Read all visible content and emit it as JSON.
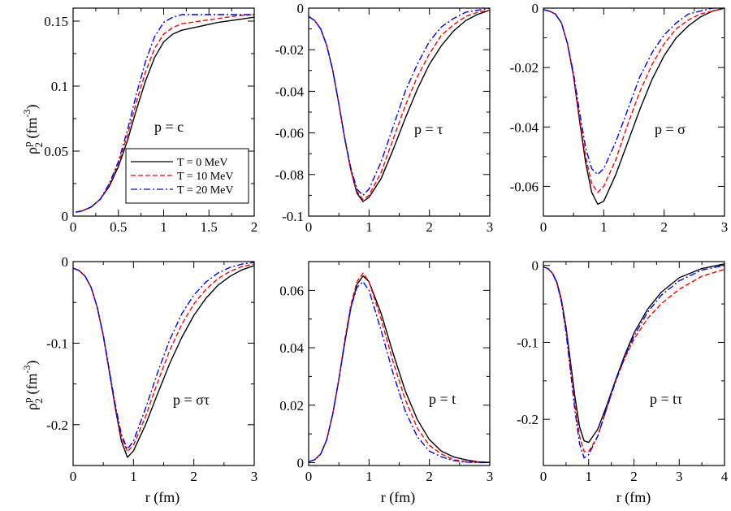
{
  "figure": {
    "ylabel_rho": "ρ",
    "ylabel_sup": "p",
    "ylabel_sub": "2",
    "ylabel_unit": " (fm",
    "ylabel_exp": "-3",
    "ylabel_close": ")",
    "xlabel": "r (fm)"
  },
  "legend": {
    "entries": [
      {
        "label": "T = 0 MeV",
        "color": "#000000",
        "dash": "solid"
      },
      {
        "label": "T = 10 MeV",
        "color": "#ff0000",
        "dash": "dashed"
      },
      {
        "label": "T = 20 MeV",
        "color": "#0000ff",
        "dash": "dashdot"
      }
    ]
  },
  "chart_data": [
    {
      "type": "line",
      "annotation": "p = c",
      "xlim": [
        0,
        2
      ],
      "ylim": [
        0,
        0.16
      ],
      "xticks": [
        0,
        0.5,
        1,
        1.5,
        2
      ],
      "xtick_labels": [
        "0",
        "0.5",
        "1",
        "1.5",
        "2"
      ],
      "yticks": [
        0,
        0.05,
        0.1,
        0.15
      ],
      "ytick_labels": [
        "0",
        "0.05",
        "0.1",
        "0.15"
      ],
      "series": [
        {
          "name": "T = 0 MeV",
          "x": [
            0.03,
            0.1,
            0.2,
            0.3,
            0.4,
            0.5,
            0.6,
            0.7,
            0.8,
            0.9,
            1.0,
            1.1,
            1.2,
            1.4,
            1.6,
            1.8,
            2.0
          ],
          "y": [
            0.003,
            0.004,
            0.007,
            0.013,
            0.023,
            0.038,
            0.058,
            0.082,
            0.104,
            0.122,
            0.134,
            0.14,
            0.143,
            0.146,
            0.149,
            0.151,
            0.153
          ]
        },
        {
          "name": "T = 10 MeV",
          "x": [
            0.03,
            0.1,
            0.2,
            0.3,
            0.4,
            0.5,
            0.6,
            0.7,
            0.8,
            0.9,
            1.0,
            1.1,
            1.2,
            1.4,
            1.6,
            1.8,
            2.0
          ],
          "y": [
            0.003,
            0.004,
            0.007,
            0.013,
            0.024,
            0.04,
            0.062,
            0.088,
            0.111,
            0.129,
            0.14,
            0.145,
            0.148,
            0.15,
            0.152,
            0.154,
            0.155
          ]
        },
        {
          "name": "T = 20 MeV",
          "x": [
            0.03,
            0.1,
            0.2,
            0.3,
            0.4,
            0.5,
            0.6,
            0.7,
            0.8,
            0.9,
            1.0,
            1.1,
            1.2,
            1.4,
            1.6,
            1.8,
            2.0
          ],
          "y": [
            0.003,
            0.004,
            0.007,
            0.013,
            0.025,
            0.042,
            0.066,
            0.094,
            0.119,
            0.138,
            0.149,
            0.153,
            0.155,
            0.155,
            0.155,
            0.155,
            0.155
          ]
        }
      ]
    },
    {
      "type": "line",
      "annotation": "p = τ",
      "xlim": [
        0,
        3
      ],
      "ylim": [
        -0.1,
        0
      ],
      "xticks": [
        0,
        1,
        2,
        3
      ],
      "xtick_labels": [
        "0",
        "1",
        "2",
        "3"
      ],
      "yticks": [
        -0.1,
        -0.08,
        -0.06,
        -0.04,
        -0.02,
        0
      ],
      "ytick_labels": [
        "-0.1",
        "-0.08",
        "-0.06",
        "-0.04",
        "-0.02",
        "0"
      ],
      "series": [
        {
          "name": "T = 0 MeV",
          "x": [
            0,
            0.1,
            0.2,
            0.3,
            0.4,
            0.5,
            0.6,
            0.7,
            0.8,
            0.9,
            1.0,
            1.2,
            1.4,
            1.6,
            1.8,
            2.0,
            2.2,
            2.4,
            2.6,
            2.8,
            3.0
          ],
          "y": [
            -0.004,
            -0.006,
            -0.01,
            -0.018,
            -0.03,
            -0.046,
            -0.063,
            -0.078,
            -0.089,
            -0.093,
            -0.091,
            -0.082,
            -0.068,
            -0.053,
            -0.039,
            -0.027,
            -0.018,
            -0.011,
            -0.006,
            -0.003,
            -0.001
          ]
        },
        {
          "name": "T = 10 MeV",
          "x": [
            0,
            0.1,
            0.2,
            0.3,
            0.4,
            0.5,
            0.6,
            0.7,
            0.8,
            0.9,
            1.0,
            1.2,
            1.4,
            1.6,
            1.8,
            2.0,
            2.2,
            2.4,
            2.6,
            2.8,
            3.0
          ],
          "y": [
            -0.004,
            -0.006,
            -0.01,
            -0.018,
            -0.03,
            -0.046,
            -0.063,
            -0.078,
            -0.088,
            -0.092,
            -0.09,
            -0.079,
            -0.063,
            -0.047,
            -0.033,
            -0.022,
            -0.013,
            -0.008,
            -0.004,
            -0.002,
            -0.001
          ]
        },
        {
          "name": "T = 20 MeV",
          "x": [
            0,
            0.1,
            0.2,
            0.3,
            0.4,
            0.5,
            0.6,
            0.7,
            0.8,
            0.9,
            1.0,
            1.2,
            1.4,
            1.6,
            1.8,
            2.0,
            2.2,
            2.4,
            2.6,
            2.8,
            3.0
          ],
          "y": [
            -0.004,
            -0.006,
            -0.01,
            -0.018,
            -0.03,
            -0.046,
            -0.063,
            -0.077,
            -0.087,
            -0.09,
            -0.087,
            -0.074,
            -0.057,
            -0.04,
            -0.027,
            -0.016,
            -0.009,
            -0.005,
            -0.002,
            -0.001,
            0.0
          ]
        }
      ]
    },
    {
      "type": "line",
      "annotation": "p = σ",
      "xlim": [
        0,
        3
      ],
      "ylim": [
        -0.07,
        0
      ],
      "xticks": [
        0,
        1,
        2,
        3
      ],
      "xtick_labels": [
        "0",
        "1",
        "2",
        "3"
      ],
      "yticks": [
        -0.06,
        -0.04,
        -0.02,
        0
      ],
      "ytick_labels": [
        "-0.06",
        "-0.04",
        "-0.02",
        "0"
      ],
      "series": [
        {
          "name": "T = 0 MeV",
          "x": [
            0,
            0.1,
            0.2,
            0.3,
            0.4,
            0.5,
            0.6,
            0.7,
            0.8,
            0.9,
            1.0,
            1.2,
            1.4,
            1.6,
            1.8,
            2.0,
            2.2,
            2.4,
            2.6,
            2.8,
            3.0
          ],
          "y": [
            -0.0005,
            -0.001,
            -0.002,
            -0.005,
            -0.012,
            -0.023,
            -0.038,
            -0.052,
            -0.062,
            -0.066,
            -0.065,
            -0.056,
            -0.045,
            -0.034,
            -0.024,
            -0.016,
            -0.01,
            -0.006,
            -0.003,
            -0.001,
            0.0
          ]
        },
        {
          "name": "T = 10 MeV",
          "x": [
            0,
            0.1,
            0.2,
            0.3,
            0.4,
            0.5,
            0.6,
            0.7,
            0.8,
            0.9,
            1.0,
            1.2,
            1.4,
            1.6,
            1.8,
            2.0,
            2.2,
            2.4,
            2.6,
            2.8,
            3.0
          ],
          "y": [
            -0.0005,
            -0.001,
            -0.002,
            -0.005,
            -0.012,
            -0.023,
            -0.037,
            -0.05,
            -0.059,
            -0.062,
            -0.06,
            -0.051,
            -0.039,
            -0.028,
            -0.019,
            -0.012,
            -0.007,
            -0.004,
            -0.002,
            -0.001,
            0.0
          ]
        },
        {
          "name": "T = 20 MeV",
          "x": [
            0,
            0.1,
            0.2,
            0.3,
            0.4,
            0.5,
            0.6,
            0.7,
            0.8,
            0.9,
            1.0,
            1.2,
            1.4,
            1.6,
            1.8,
            2.0,
            2.2,
            2.4,
            2.6,
            2.8,
            3.0
          ],
          "y": [
            -0.0005,
            -0.001,
            -0.002,
            -0.005,
            -0.012,
            -0.022,
            -0.035,
            -0.047,
            -0.054,
            -0.056,
            -0.054,
            -0.045,
            -0.034,
            -0.023,
            -0.015,
            -0.009,
            -0.005,
            -0.002,
            -0.001,
            0.0,
            0.0
          ]
        }
      ]
    },
    {
      "type": "line",
      "annotation": "p = στ",
      "xlim": [
        0,
        3
      ],
      "ylim": [
        -0.25,
        0
      ],
      "xticks": [
        0,
        1,
        2,
        3
      ],
      "xtick_labels": [
        "0",
        "1",
        "2",
        "3"
      ],
      "yticks": [
        -0.2,
        -0.1,
        0
      ],
      "ytick_labels": [
        "-0.2",
        "-0.1",
        "0"
      ],
      "series": [
        {
          "name": "T = 0 MeV",
          "x": [
            0,
            0.1,
            0.2,
            0.3,
            0.4,
            0.5,
            0.6,
            0.7,
            0.8,
            0.9,
            1.0,
            1.2,
            1.4,
            1.6,
            1.8,
            2.0,
            2.2,
            2.4,
            2.6,
            2.8,
            3.0
          ],
          "y": [
            -0.008,
            -0.011,
            -0.018,
            -0.032,
            -0.056,
            -0.091,
            -0.135,
            -0.18,
            -0.22,
            -0.24,
            -0.232,
            -0.2,
            -0.162,
            -0.125,
            -0.093,
            -0.066,
            -0.045,
            -0.029,
            -0.018,
            -0.01,
            -0.005
          ]
        },
        {
          "name": "T = 10 MeV",
          "x": [
            0,
            0.1,
            0.2,
            0.3,
            0.4,
            0.5,
            0.6,
            0.7,
            0.8,
            0.9,
            1.0,
            1.2,
            1.4,
            1.6,
            1.8,
            2.0,
            2.2,
            2.4,
            2.6,
            2.8,
            3.0
          ],
          "y": [
            -0.008,
            -0.011,
            -0.018,
            -0.032,
            -0.056,
            -0.091,
            -0.134,
            -0.178,
            -0.215,
            -0.233,
            -0.225,
            -0.19,
            -0.148,
            -0.109,
            -0.077,
            -0.052,
            -0.034,
            -0.021,
            -0.012,
            -0.006,
            -0.003
          ]
        },
        {
          "name": "T = 20 MeV",
          "x": [
            0,
            0.1,
            0.2,
            0.3,
            0.4,
            0.5,
            0.6,
            0.7,
            0.8,
            0.9,
            1.0,
            1.2,
            1.4,
            1.6,
            1.8,
            2.0,
            2.2,
            2.4,
            2.6,
            2.8,
            3.0
          ],
          "y": [
            -0.008,
            -0.011,
            -0.018,
            -0.032,
            -0.056,
            -0.09,
            -0.133,
            -0.176,
            -0.212,
            -0.23,
            -0.22,
            -0.18,
            -0.136,
            -0.096,
            -0.064,
            -0.041,
            -0.025,
            -0.014,
            -0.007,
            -0.003,
            -0.001
          ]
        }
      ]
    },
    {
      "type": "line",
      "annotation": "p = t",
      "xlim": [
        0,
        3
      ],
      "ylim": [
        -0.001,
        0.07
      ],
      "xticks": [
        0,
        1,
        2,
        3
      ],
      "xtick_labels": [
        "0",
        "1",
        "2",
        "3"
      ],
      "yticks": [
        0,
        0.02,
        0.04,
        0.06
      ],
      "ytick_labels": [
        "0",
        "0.02",
        "0.04",
        "0.06"
      ],
      "series": [
        {
          "name": "T = 0 MeV",
          "x": [
            0,
            0.1,
            0.2,
            0.3,
            0.4,
            0.5,
            0.6,
            0.7,
            0.8,
            0.9,
            1.0,
            1.2,
            1.4,
            1.6,
            1.8,
            2.0,
            2.2,
            2.4,
            2.6,
            2.8,
            3.0
          ],
          "y": [
            0.0003,
            0.001,
            0.003,
            0.008,
            0.017,
            0.029,
            0.042,
            0.054,
            0.062,
            0.065,
            0.063,
            0.052,
            0.038,
            0.025,
            0.015,
            0.008,
            0.004,
            0.002,
            0.001,
            0.0003,
            0.0001
          ]
        },
        {
          "name": "T = 10 MeV",
          "x": [
            0,
            0.1,
            0.2,
            0.3,
            0.4,
            0.5,
            0.6,
            0.7,
            0.8,
            0.9,
            1.0,
            1.2,
            1.4,
            1.6,
            1.8,
            2.0,
            2.2,
            2.4,
            2.6,
            2.8,
            3.0
          ],
          "y": [
            0.0003,
            0.001,
            0.003,
            0.008,
            0.017,
            0.029,
            0.043,
            0.055,
            0.063,
            0.066,
            0.063,
            0.05,
            0.035,
            0.022,
            0.012,
            0.006,
            0.003,
            0.001,
            0.0004,
            0.0001,
            0.0
          ]
        },
        {
          "name": "T = 20 MeV",
          "x": [
            0,
            0.1,
            0.2,
            0.3,
            0.4,
            0.5,
            0.6,
            0.7,
            0.8,
            0.9,
            1.0,
            1.2,
            1.4,
            1.6,
            1.8,
            2.0,
            2.2,
            2.4,
            2.6,
            2.8,
            3.0
          ],
          "y": [
            0.0003,
            0.001,
            0.003,
            0.008,
            0.017,
            0.029,
            0.042,
            0.054,
            0.061,
            0.063,
            0.06,
            0.046,
            0.031,
            0.018,
            0.009,
            0.004,
            0.002,
            0.0007,
            0.0002,
            0.0,
            0.0
          ]
        }
      ]
    },
    {
      "type": "line",
      "annotation": "p = tτ",
      "xlim": [
        0,
        4
      ],
      "ylim": [
        -0.26,
        0.005
      ],
      "xticks": [
        0,
        1,
        2,
        3,
        4
      ],
      "xtick_labels": [
        "0",
        "1",
        "2",
        "3",
        "4"
      ],
      "yticks": [
        -0.2,
        -0.1,
        0
      ],
      "ytick_labels": [
        "-0.2",
        "-0.1",
        "0"
      ],
      "series": [
        {
          "name": "T = 0 MeV",
          "x": [
            0,
            0.1,
            0.2,
            0.3,
            0.4,
            0.5,
            0.6,
            0.7,
            0.8,
            0.9,
            1.0,
            1.2,
            1.4,
            1.6,
            1.8,
            2.0,
            2.3,
            2.6,
            3.0,
            3.5,
            4.0
          ],
          "y": [
            -0.002,
            -0.004,
            -0.01,
            -0.022,
            -0.045,
            -0.08,
            -0.126,
            -0.172,
            -0.21,
            -0.228,
            -0.23,
            -0.213,
            -0.182,
            -0.148,
            -0.116,
            -0.088,
            -0.057,
            -0.035,
            -0.016,
            -0.004,
            0.002
          ]
        },
        {
          "name": "T = 10 MeV",
          "x": [
            0,
            0.1,
            0.2,
            0.3,
            0.4,
            0.5,
            0.6,
            0.7,
            0.8,
            0.9,
            1.0,
            1.2,
            1.4,
            1.6,
            1.8,
            2.0,
            2.3,
            2.6,
            3.0,
            3.5,
            4.0
          ],
          "y": [
            -0.002,
            -0.004,
            -0.01,
            -0.023,
            -0.047,
            -0.084,
            -0.133,
            -0.182,
            -0.222,
            -0.242,
            -0.242,
            -0.222,
            -0.186,
            -0.15,
            -0.12,
            -0.096,
            -0.069,
            -0.05,
            -0.031,
            -0.014,
            -0.005
          ]
        },
        {
          "name": "T = 20 MeV",
          "x": [
            0,
            0.1,
            0.2,
            0.3,
            0.4,
            0.5,
            0.6,
            0.7,
            0.8,
            0.9,
            1.0,
            1.2,
            1.4,
            1.6,
            1.8,
            2.0,
            2.3,
            2.6,
            3.0,
            3.5,
            4.0
          ],
          "y": [
            -0.002,
            -0.004,
            -0.01,
            -0.023,
            -0.048,
            -0.087,
            -0.138,
            -0.19,
            -0.232,
            -0.25,
            -0.246,
            -0.222,
            -0.185,
            -0.15,
            -0.119,
            -0.092,
            -0.061,
            -0.039,
            -0.02,
            -0.006,
            0.0
          ]
        }
      ]
    }
  ]
}
